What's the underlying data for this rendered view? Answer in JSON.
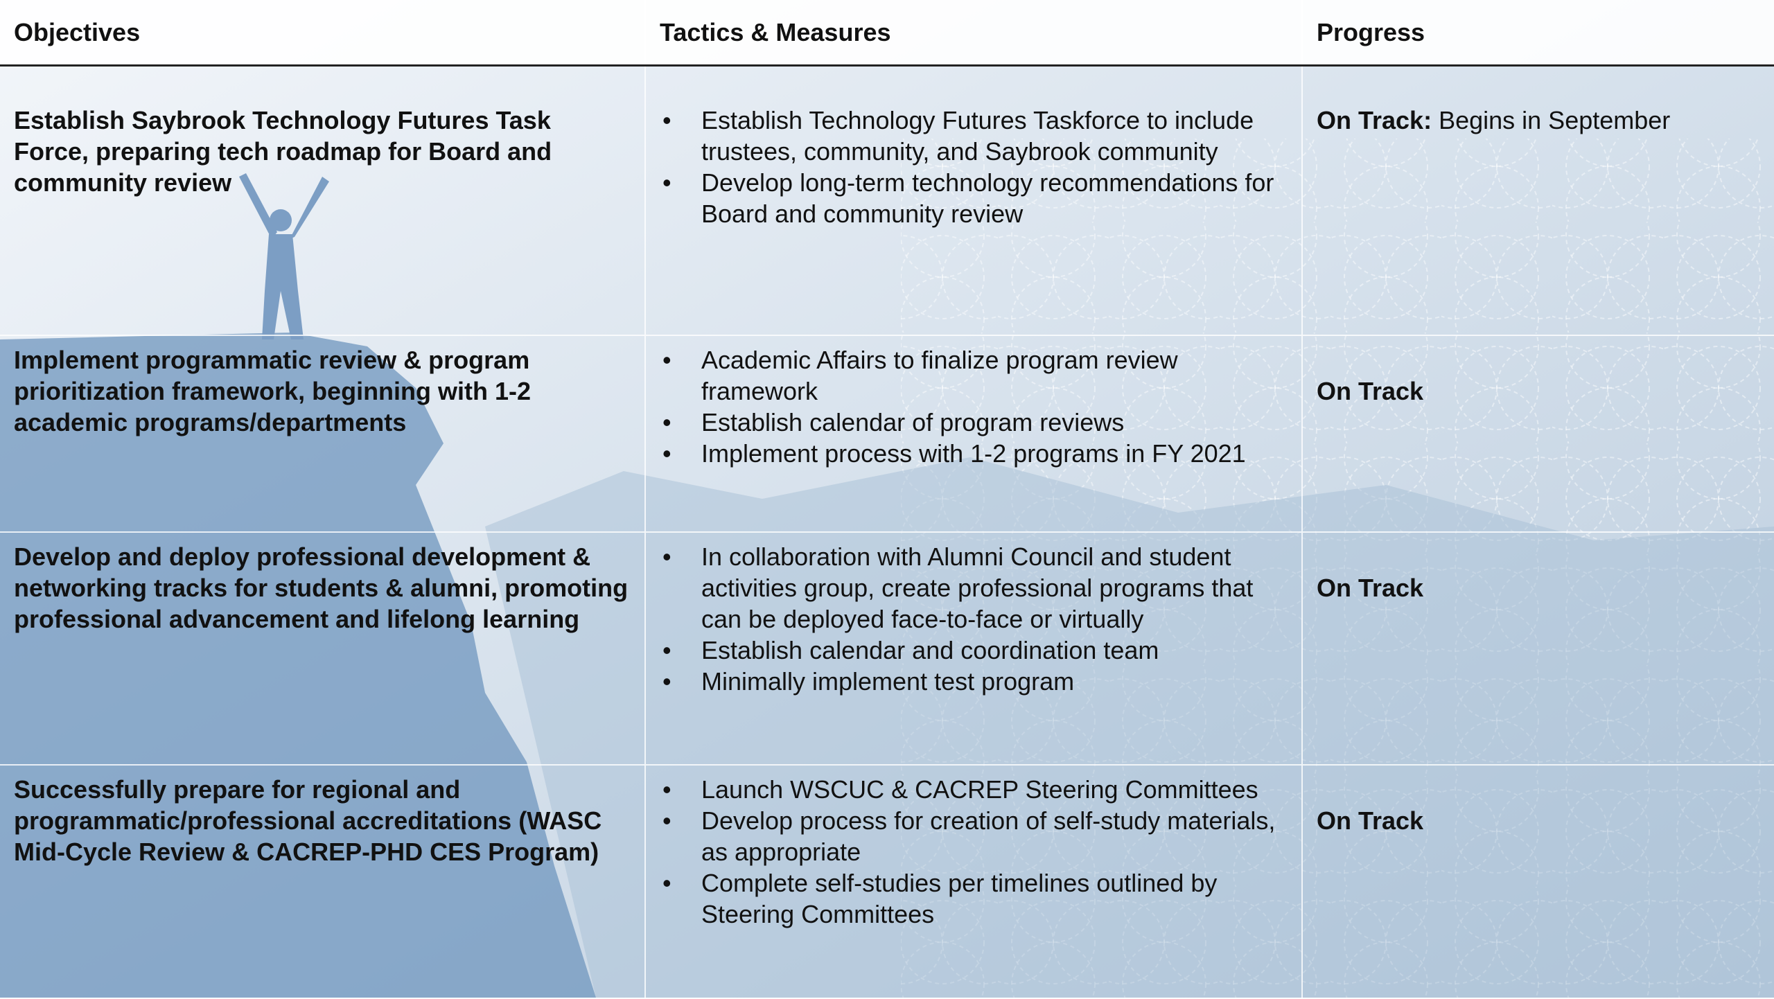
{
  "table": {
    "header": [
      "Objectives",
      "Tactics & Measures",
      "Progress"
    ],
    "rows": [
      {
        "objective": "Establish Saybrook Technology Futures Task Force, preparing tech roadmap for Board and community review",
        "tactics": [
          "Establish Technology Futures Taskforce to include trustees, community, and Saybrook community",
          "Develop long-term technology recommendations for Board and community review"
        ],
        "status": "On Track:",
        "note": "Begins in September"
      },
      {
        "objective": "Implement programmatic review & program prioritization framework, beginning with 1-2 academic programs/departments",
        "tactics": [
          "Academic Affairs to finalize program review framework",
          "Establish calendar of program reviews",
          "Implement process with 1-2 programs in FY 2021"
        ],
        "status": "On Track"
      },
      {
        "objective": "Develop and deploy professional development & networking tracks for students & alumni, promoting professional advancement and lifelong learning",
        "tactics": [
          "In collaboration with Alumni Council and student activities group, create professional programs that can be deployed face-to-face or virtually",
          "Establish calendar and coordination team",
          "Minimally implement test program"
        ],
        "status": "On Track"
      },
      {
        "objective": "Successfully prepare for regional and programmatic/professional accreditations (WASC Mid-Cycle Review & CACREP-PHD CES Program)",
        "tactics": [
          "Launch WSCUC & CACREP Steering Committees",
          "Develop process for creation of self-study materials, as appropriate",
          "Complete self-studies per timelines outlined by Steering Committees"
        ],
        "status": "On Track"
      }
    ]
  }
}
